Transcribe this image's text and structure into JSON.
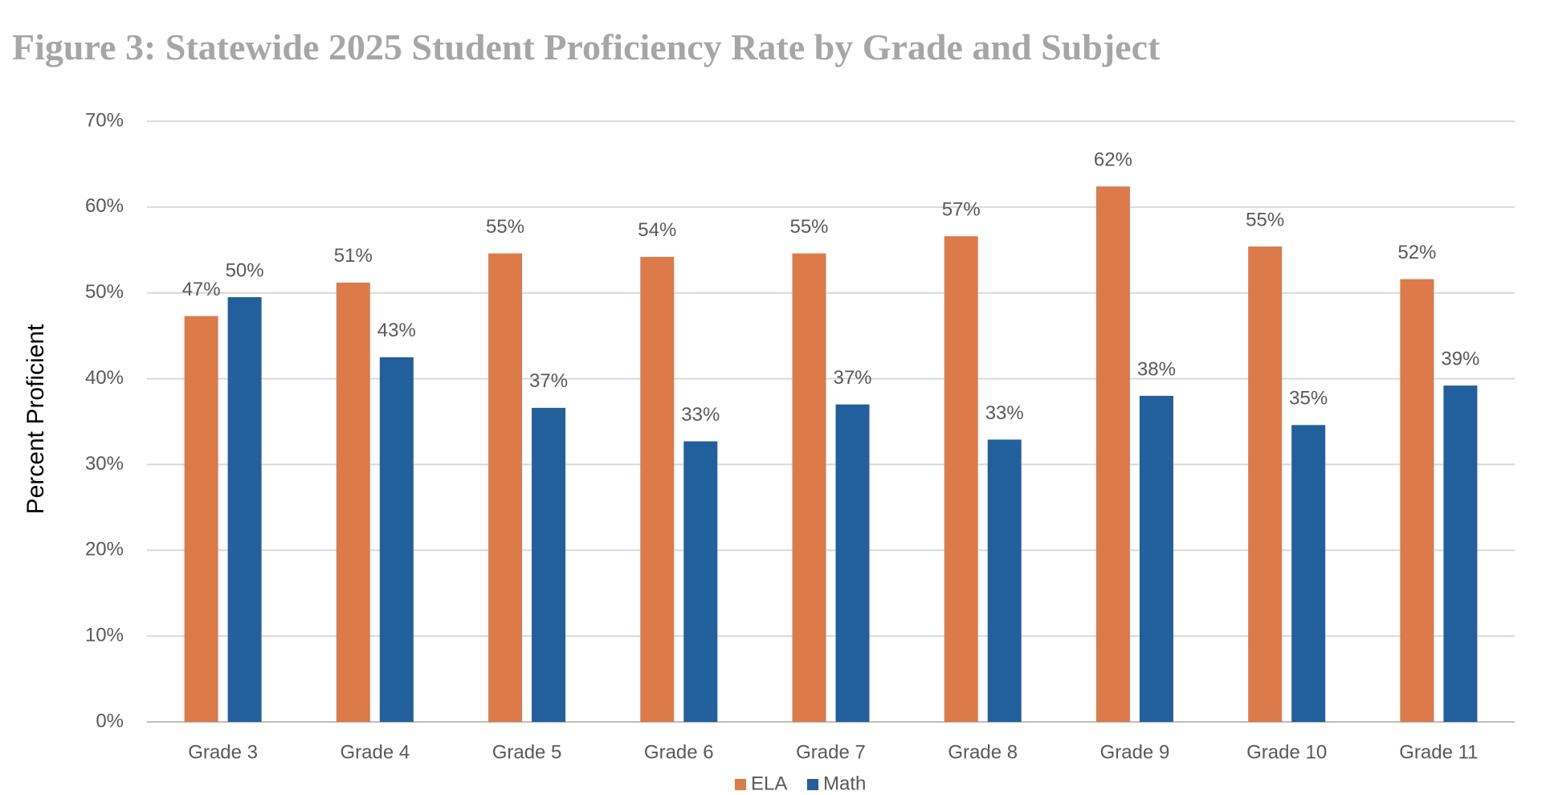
{
  "chart_data": {
    "type": "bar",
    "title": "Figure 3: Statewide 2025 Student Proficiency Rate by Grade and Subject",
    "y_label": "Percent Proficient",
    "categories": [
      "Grade 3",
      "Grade 4",
      "Grade 5",
      "Grade 6",
      "Grade 7",
      "Grade 8",
      "Grade 9",
      "Grade 10",
      "Grade 11"
    ],
    "series": [
      {
        "name": "ELA",
        "color": "#dd7a4a",
        "values": [
          47.3,
          51.2,
          54.6,
          54.2,
          54.6,
          56.6,
          62.4,
          55.4,
          51.6
        ],
        "value_labels": [
          "47%",
          "51%",
          "55%",
          "54%",
          "55%",
          "57%",
          "62%",
          "55%",
          "52%"
        ]
      },
      {
        "name": "Math",
        "color": "#21609c",
        "values": [
          49.5,
          42.5,
          36.6,
          32.7,
          37.0,
          32.9,
          38.0,
          34.6,
          39.2
        ],
        "value_labels": [
          "50%",
          "43%",
          "37%",
          "33%",
          "37%",
          "33%",
          "38%",
          "35%",
          "39%"
        ]
      }
    ],
    "ylim": [
      0,
      70
    ],
    "yticks": [
      {
        "value": 0,
        "label": "0%"
      },
      {
        "value": 10,
        "label": "10%"
      },
      {
        "value": 20,
        "label": "20%"
      },
      {
        "value": 30,
        "label": "30%"
      },
      {
        "value": 40,
        "label": "40%"
      },
      {
        "value": 50,
        "label": "50%"
      },
      {
        "value": 60,
        "label": "60%"
      },
      {
        "value": 70,
        "label": "70%"
      }
    ],
    "grid": true,
    "legend": "bottom"
  }
}
